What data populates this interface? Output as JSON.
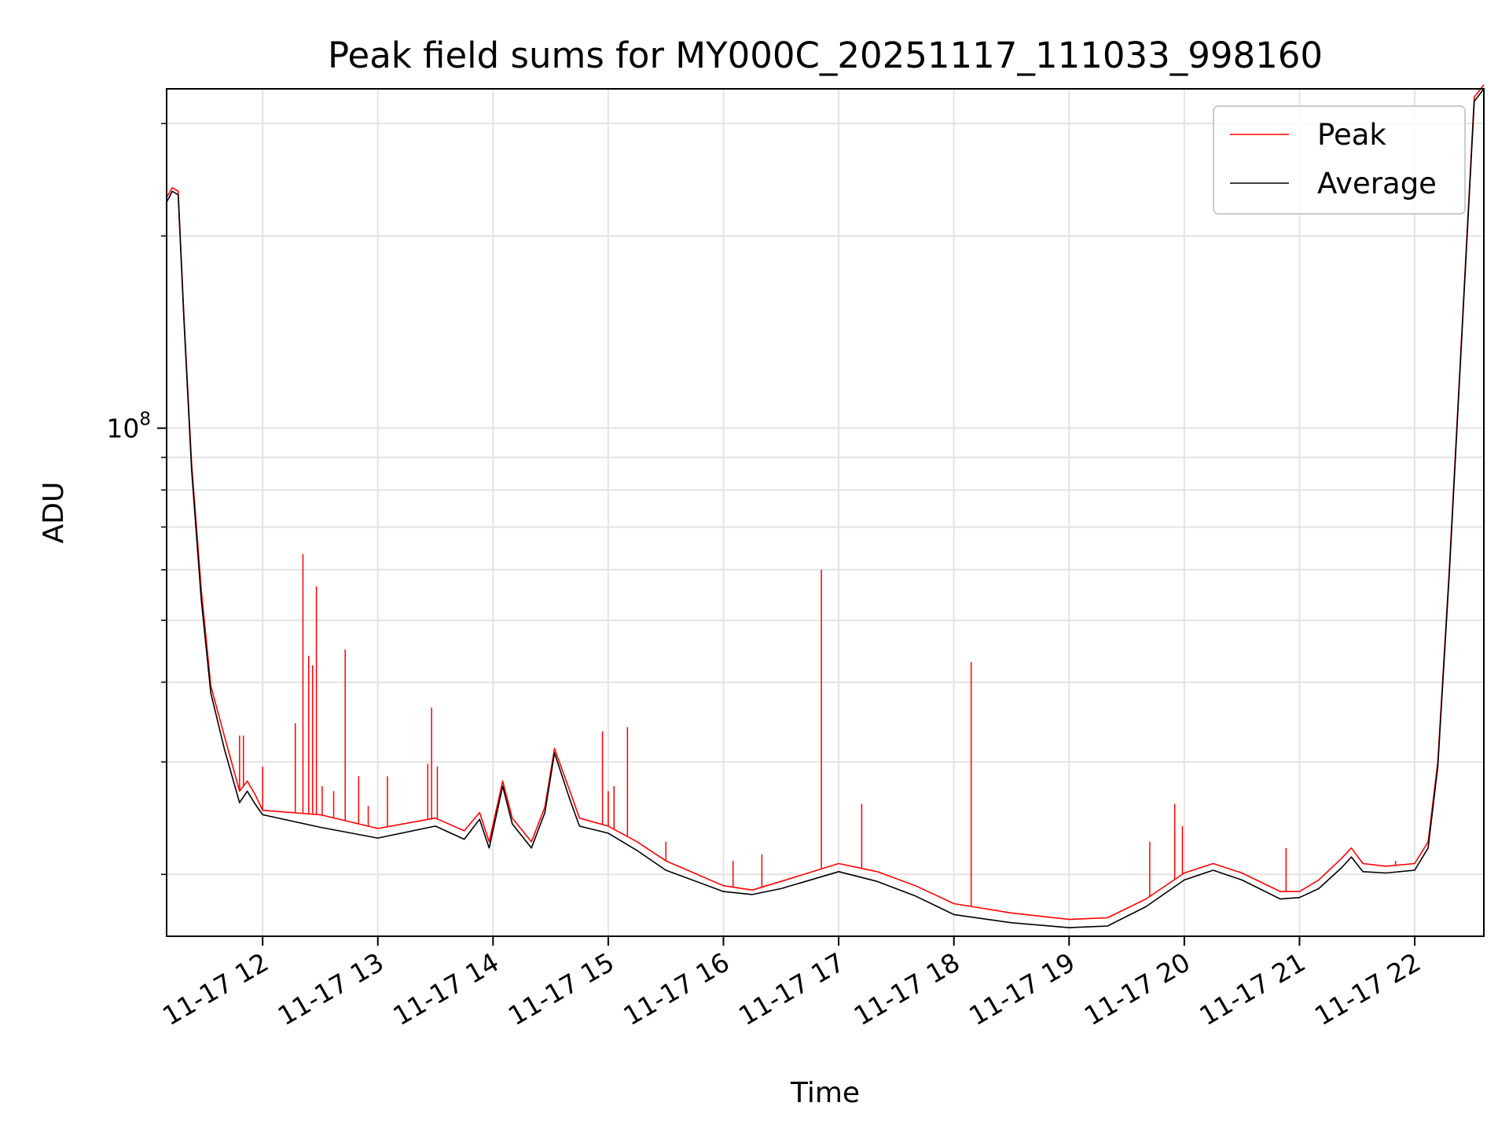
{
  "chart_data": {
    "type": "line",
    "title": "Peak field sums for MY000C_20251117_111033_998160",
    "xlabel": "Time",
    "ylabel": "ADU",
    "x_scale": "time",
    "y_scale": "log",
    "xlim": [
      "2025-11-17 11:10",
      "2025-11-17 22:36"
    ],
    "ylim": [
      16000000,
      340000000
    ],
    "grid": true,
    "legend_position": "top-right",
    "x_ticks": [
      {
        "t": "2025-11-17 12:00",
        "label": "11-17 12"
      },
      {
        "t": "2025-11-17 13:00",
        "label": "11-17 13"
      },
      {
        "t": "2025-11-17 14:00",
        "label": "11-17 14"
      },
      {
        "t": "2025-11-17 15:00",
        "label": "11-17 15"
      },
      {
        "t": "2025-11-17 16:00",
        "label": "11-17 16"
      },
      {
        "t": "2025-11-17 17:00",
        "label": "11-17 17"
      },
      {
        "t": "2025-11-17 18:00",
        "label": "11-17 18"
      },
      {
        "t": "2025-11-17 19:00",
        "label": "11-17 19"
      },
      {
        "t": "2025-11-17 20:00",
        "label": "11-17 20"
      },
      {
        "t": "2025-11-17 21:00",
        "label": "11-17 21"
      },
      {
        "t": "2025-11-17 22:00",
        "label": "11-17 22"
      }
    ],
    "y_major_ticks": [
      {
        "value": 100000000,
        "base": "10",
        "exp": "8"
      }
    ],
    "y_minor_ticks": [
      20000000,
      30000000,
      40000000,
      50000000,
      60000000,
      70000000,
      80000000,
      90000000,
      200000000,
      300000000
    ],
    "series": [
      {
        "name": "Peak",
        "color": "#ff0000",
        "points": [
          [
            "2025-11-17 11:10",
            230000000
          ],
          [
            "2025-11-17 11:13",
            238000000
          ],
          [
            "2025-11-17 11:16",
            235000000
          ],
          [
            "2025-11-17 11:19",
            150000000
          ],
          [
            "2025-11-17 11:23",
            88000000
          ],
          [
            "2025-11-17 11:28",
            56000000
          ],
          [
            "2025-11-17 11:33",
            39500000
          ],
          [
            "2025-11-17 11:40",
            33000000
          ],
          [
            "2025-11-17 11:48",
            27000000
          ],
          [
            "2025-11-17 11:52",
            28000000
          ],
          [
            "2025-11-17 11:56",
            26700000
          ],
          [
            "2025-11-17 12:00",
            25200000
          ],
          [
            "2025-11-17 12:30",
            24800000
          ],
          [
            "2025-11-17 13:00",
            23600000
          ],
          [
            "2025-11-17 13:30",
            24500000
          ],
          [
            "2025-11-17 13:45",
            23400000
          ],
          [
            "2025-11-17 13:53",
            25000000
          ],
          [
            "2025-11-17 13:58",
            22500000
          ],
          [
            "2025-11-17 14:05",
            28000000
          ],
          [
            "2025-11-17 14:10",
            24500000
          ],
          [
            "2025-11-17 14:20",
            22500000
          ],
          [
            "2025-11-17 14:27",
            25500000
          ],
          [
            "2025-11-17 14:32",
            31500000
          ],
          [
            "2025-11-17 14:40",
            27000000
          ],
          [
            "2025-11-17 14:45",
            24500000
          ],
          [
            "2025-11-17 15:00",
            23800000
          ],
          [
            "2025-11-17 15:15",
            22500000
          ],
          [
            "2025-11-17 15:30",
            21000000
          ],
          [
            "2025-11-17 16:00",
            19200000
          ],
          [
            "2025-11-17 16:15",
            18900000
          ],
          [
            "2025-11-17 16:30",
            19500000
          ],
          [
            "2025-11-17 17:00",
            20800000
          ],
          [
            "2025-11-17 17:20",
            20200000
          ],
          [
            "2025-11-17 17:40",
            19200000
          ],
          [
            "2025-11-17 18:00",
            18000000
          ],
          [
            "2025-11-17 18:30",
            17400000
          ],
          [
            "2025-11-17 19:00",
            17000000
          ],
          [
            "2025-11-17 19:20",
            17100000
          ],
          [
            "2025-11-17 19:40",
            18300000
          ],
          [
            "2025-11-17 20:00",
            20100000
          ],
          [
            "2025-11-17 20:15",
            20800000
          ],
          [
            "2025-11-17 20:30",
            20100000
          ],
          [
            "2025-11-17 20:50",
            18800000
          ],
          [
            "2025-11-17 21:00",
            18800000
          ],
          [
            "2025-11-17 21:10",
            19600000
          ],
          [
            "2025-11-17 21:22",
            21200000
          ],
          [
            "2025-11-17 21:27",
            22000000
          ],
          [
            "2025-11-17 21:33",
            20800000
          ],
          [
            "2025-11-17 21:45",
            20600000
          ],
          [
            "2025-11-17 22:00",
            20800000
          ],
          [
            "2025-11-17 22:07",
            22500000
          ],
          [
            "2025-11-17 22:12",
            30000000
          ],
          [
            "2025-11-17 22:18",
            60000000
          ],
          [
            "2025-11-17 22:25",
            150000000
          ],
          [
            "2025-11-17 22:31",
            330000000
          ],
          [
            "2025-11-17 22:36",
            345000000
          ]
        ],
        "spikes": [
          [
            "2025-11-17 11:48",
            33000000
          ],
          [
            "2025-11-17 11:50",
            33000000
          ],
          [
            "2025-11-17 12:00",
            29500000
          ],
          [
            "2025-11-17 12:17",
            34500000
          ],
          [
            "2025-11-17 12:21",
            63500000
          ],
          [
            "2025-11-17 12:24",
            44000000
          ],
          [
            "2025-11-17 12:26",
            42500000
          ],
          [
            "2025-11-17 12:28",
            56500000
          ],
          [
            "2025-11-17 12:31",
            27500000
          ],
          [
            "2025-11-17 12:37",
            27000000
          ],
          [
            "2025-11-17 12:43",
            45000000
          ],
          [
            "2025-11-17 12:50",
            28500000
          ],
          [
            "2025-11-17 12:55",
            25600000
          ],
          [
            "2025-11-17 13:05",
            28500000
          ],
          [
            "2025-11-17 13:26",
            29800000
          ],
          [
            "2025-11-17 13:28",
            36500000
          ],
          [
            "2025-11-17 13:31",
            29500000
          ],
          [
            "2025-11-17 14:57",
            33500000
          ],
          [
            "2025-11-17 15:00",
            27000000
          ],
          [
            "2025-11-17 15:03",
            27500000
          ],
          [
            "2025-11-17 15:10",
            34000000
          ],
          [
            "2025-11-17 15:30",
            22500000
          ],
          [
            "2025-11-17 16:05",
            21000000
          ],
          [
            "2025-11-17 16:20",
            21500000
          ],
          [
            "2025-11-17 16:51",
            60000000
          ],
          [
            "2025-11-17 17:12",
            25800000
          ],
          [
            "2025-11-17 18:09",
            43000000
          ],
          [
            "2025-11-17 19:42",
            22500000
          ],
          [
            "2025-11-17 19:55",
            25800000
          ],
          [
            "2025-11-17 19:59",
            23800000
          ],
          [
            "2025-11-17 20:53",
            22000000
          ],
          [
            "2025-11-17 21:50",
            21000000
          ]
        ]
      },
      {
        "name": "Average",
        "color": "#000000",
        "points": [
          [
            "2025-11-17 11:10",
            226000000
          ],
          [
            "2025-11-17 11:13",
            235000000
          ],
          [
            "2025-11-17 11:16",
            232000000
          ],
          [
            "2025-11-17 11:19",
            148000000
          ],
          [
            "2025-11-17 11:23",
            86000000
          ],
          [
            "2025-11-17 11:28",
            54000000
          ],
          [
            "2025-11-17 11:33",
            38500000
          ],
          [
            "2025-11-17 11:40",
            31500000
          ],
          [
            "2025-11-17 11:48",
            25900000
          ],
          [
            "2025-11-17 11:52",
            27000000
          ],
          [
            "2025-11-17 11:56",
            25800000
          ],
          [
            "2025-11-17 12:00",
            24800000
          ],
          [
            "2025-11-17 12:30",
            23700000
          ],
          [
            "2025-11-17 13:00",
            22800000
          ],
          [
            "2025-11-17 13:30",
            23800000
          ],
          [
            "2025-11-17 13:45",
            22700000
          ],
          [
            "2025-11-17 13:53",
            24400000
          ],
          [
            "2025-11-17 13:58",
            22000000
          ],
          [
            "2025-11-17 14:05",
            27500000
          ],
          [
            "2025-11-17 14:10",
            24000000
          ],
          [
            "2025-11-17 14:20",
            22000000
          ],
          [
            "2025-11-17 14:27",
            25000000
          ],
          [
            "2025-11-17 14:32",
            31000000
          ],
          [
            "2025-11-17 14:40",
            26200000
          ],
          [
            "2025-11-17 14:45",
            23800000
          ],
          [
            "2025-11-17 15:00",
            23200000
          ],
          [
            "2025-11-17 15:15",
            21800000
          ],
          [
            "2025-11-17 15:30",
            20300000
          ],
          [
            "2025-11-17 16:00",
            18800000
          ],
          [
            "2025-11-17 16:15",
            18600000
          ],
          [
            "2025-11-17 16:30",
            19000000
          ],
          [
            "2025-11-17 17:00",
            20200000
          ],
          [
            "2025-11-17 17:20",
            19500000
          ],
          [
            "2025-11-17 17:40",
            18500000
          ],
          [
            "2025-11-17 18:00",
            17300000
          ],
          [
            "2025-11-17 18:30",
            16800000
          ],
          [
            "2025-11-17 19:00",
            16500000
          ],
          [
            "2025-11-17 19:20",
            16600000
          ],
          [
            "2025-11-17 19:40",
            17800000
          ],
          [
            "2025-11-17 20:00",
            19600000
          ],
          [
            "2025-11-17 20:15",
            20300000
          ],
          [
            "2025-11-17 20:30",
            19600000
          ],
          [
            "2025-11-17 20:50",
            18300000
          ],
          [
            "2025-11-17 21:00",
            18400000
          ],
          [
            "2025-11-17 21:10",
            19000000
          ],
          [
            "2025-11-17 21:22",
            20500000
          ],
          [
            "2025-11-17 21:27",
            21300000
          ],
          [
            "2025-11-17 21:33",
            20200000
          ],
          [
            "2025-11-17 21:45",
            20100000
          ],
          [
            "2025-11-17 22:00",
            20300000
          ],
          [
            "2025-11-17 22:07",
            22000000
          ],
          [
            "2025-11-17 22:12",
            29500000
          ],
          [
            "2025-11-17 22:18",
            59000000
          ],
          [
            "2025-11-17 22:25",
            148000000
          ],
          [
            "2025-11-17 22:31",
            325000000
          ],
          [
            "2025-11-17 22:36",
            340000000
          ]
        ]
      }
    ]
  }
}
